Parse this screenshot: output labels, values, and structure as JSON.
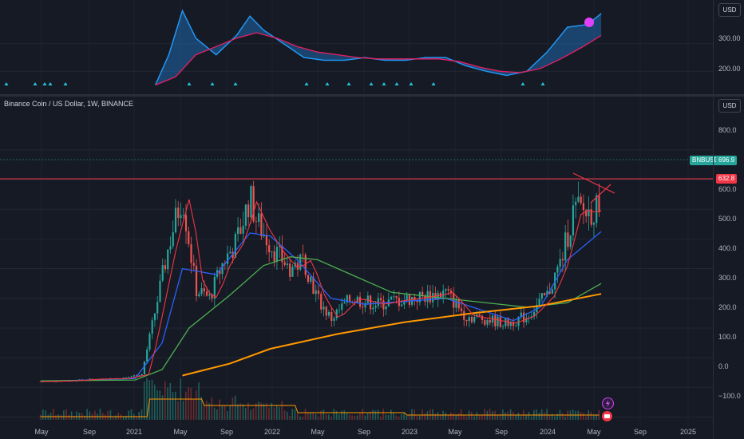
{
  "header": {
    "title": "Binance Coin / US Dollar, 1W, BINANCE",
    "currency_button": "USD",
    "currency_button_top": "USD"
  },
  "price_axis": [
    "800.0",
    "700.0",
    "600.0",
    "500.0",
    "400.0",
    "300.0",
    "200.0",
    "100.0",
    "0.0",
    "−100.0"
  ],
  "indicator_axis": [
    "300.00",
    "200.00"
  ],
  "time_axis": [
    "May",
    "Sep",
    "2021",
    "May",
    "Sep",
    "2022",
    "May",
    "Sep",
    "2023",
    "May",
    "Sep",
    "2024",
    "May",
    "Sep",
    "2025"
  ],
  "badges": {
    "symbol": "BNBUSD",
    "symbol_value": "696.9",
    "level_value": "632.8"
  },
  "colors": {
    "up": "#26a69a",
    "down": "#ef5350",
    "ma_fast": "#f23645",
    "ma_mid": "#2962ff",
    "ma_slow": "#4caf50",
    "ma_long": "#ff9800",
    "indicator_up": "#2196f3",
    "indicator_down": "#e040fb",
    "level_line": "#f23645",
    "background": "#161a25"
  },
  "icons": [
    "lightning-icon",
    "alert-icon"
  ],
  "chart_data": {
    "type": "line",
    "title": "Binance Coin / US Dollar, 1W, BINANCE",
    "ylim": [
      -120,
      880
    ],
    "horizontal_level": 632.8,
    "last_price": 696.9,
    "series": [
      {
        "values": [
          [
            2020.3,
            20
          ],
          [
            2020.5,
            22
          ],
          [
            2020.7,
            28
          ],
          [
            2020.9,
            30
          ],
          [
            2021.05,
            45
          ],
          [
            2021.15,
            260
          ],
          [
            2021.25,
            480
          ],
          [
            2021.35,
            650
          ],
          [
            2021.45,
            330
          ],
          [
            2021.55,
            300
          ],
          [
            2021.65,
            420
          ],
          [
            2021.75,
            490
          ],
          [
            2021.85,
            640
          ],
          [
            2021.9,
            560
          ],
          [
            2021.95,
            520
          ],
          [
            2022.05,
            450
          ],
          [
            2022.15,
            400
          ],
          [
            2022.25,
            430
          ],
          [
            2022.35,
            300
          ],
          [
            2022.45,
            230
          ],
          [
            2022.6,
            300
          ],
          [
            2022.8,
            280
          ],
          [
            2022.9,
            290
          ],
          [
            2023.05,
            300
          ],
          [
            2023.2,
            310
          ],
          [
            2023.3,
            320
          ],
          [
            2023.45,
            240
          ],
          [
            2023.6,
            230
          ],
          [
            2023.75,
            215
          ],
          [
            2023.9,
            240
          ],
          [
            2024.05,
            310
          ],
          [
            2024.15,
            420
          ],
          [
            2024.25,
            600
          ],
          [
            2024.35,
            590
          ],
          [
            2024.42,
            600
          ],
          [
            2024.45,
            697
          ]
        ]
      },
      {
        "values": [
          [
            2020.3,
            20
          ],
          [
            2021.0,
            30
          ],
          [
            2021.2,
            150
          ],
          [
            2021.35,
            400
          ],
          [
            2021.6,
            380
          ],
          [
            2021.85,
            520
          ],
          [
            2022.0,
            510
          ],
          [
            2022.2,
            430
          ],
          [
            2022.45,
            300
          ],
          [
            2022.7,
            280
          ],
          [
            2023.0,
            290
          ],
          [
            2023.3,
            300
          ],
          [
            2023.5,
            270
          ],
          [
            2023.8,
            225
          ],
          [
            2024.0,
            270
          ],
          [
            2024.2,
            430
          ],
          [
            2024.45,
            525
          ]
        ]
      },
      {
        "values": [
          [
            2020.3,
            22
          ],
          [
            2021.0,
            25
          ],
          [
            2021.2,
            60
          ],
          [
            2021.4,
            200
          ],
          [
            2021.7,
            310
          ],
          [
            2021.95,
            410
          ],
          [
            2022.15,
            440
          ],
          [
            2022.35,
            430
          ],
          [
            2022.6,
            380
          ],
          [
            2022.9,
            320
          ],
          [
            2023.2,
            305
          ],
          [
            2023.5,
            290
          ],
          [
            2023.9,
            270
          ],
          [
            2024.2,
            285
          ],
          [
            2024.45,
            350
          ]
        ]
      },
      {
        "values": [
          [
            2021.35,
            40
          ],
          [
            2021.7,
            80
          ],
          [
            2022.0,
            130
          ],
          [
            2022.5,
            180
          ],
          [
            2023.0,
            220
          ],
          [
            2023.5,
            250
          ],
          [
            2024.0,
            275
          ],
          [
            2024.45,
            315
          ]
        ]
      }
    ],
    "indicator": {
      "ylim": [
        140,
        430
      ],
      "values": [
        [
          2021.15,
          150
        ],
        [
          2021.25,
          260
        ],
        [
          2021.35,
          420
        ],
        [
          2021.45,
          320
        ],
        [
          2021.6,
          260
        ],
        [
          2021.75,
          330
        ],
        [
          2021.85,
          400
        ],
        [
          2021.95,
          350
        ],
        [
          2022.1,
          300
        ],
        [
          2022.25,
          250
        ],
        [
          2022.4,
          240
        ],
        [
          2022.55,
          240
        ],
        [
          2022.7,
          250
        ],
        [
          2022.85,
          240
        ],
        [
          2023.0,
          240
        ],
        [
          2023.15,
          250
        ],
        [
          2023.3,
          250
        ],
        [
          2023.45,
          220
        ],
        [
          2023.6,
          200
        ],
        [
          2023.75,
          185
        ],
        [
          2023.9,
          200
        ],
        [
          2024.05,
          270
        ],
        [
          2024.2,
          360
        ],
        [
          2024.35,
          370
        ],
        [
          2024.45,
          410
        ]
      ],
      "signal": [
        [
          2021.15,
          150
        ],
        [
          2021.3,
          180
        ],
        [
          2021.45,
          260
        ],
        [
          2021.6,
          290
        ],
        [
          2021.75,
          320
        ],
        [
          2021.9,
          340
        ],
        [
          2022.05,
          320
        ],
        [
          2022.2,
          290
        ],
        [
          2022.35,
          270
        ],
        [
          2022.5,
          260
        ],
        [
          2022.65,
          250
        ],
        [
          2022.8,
          245
        ],
        [
          2022.95,
          245
        ],
        [
          2023.1,
          245
        ],
        [
          2023.25,
          245
        ],
        [
          2023.4,
          235
        ],
        [
          2023.55,
          215
        ],
        [
          2023.7,
          200
        ],
        [
          2023.85,
          195
        ],
        [
          2024.0,
          210
        ],
        [
          2024.15,
          245
        ],
        [
          2024.3,
          285
        ],
        [
          2024.45,
          330
        ]
      ]
    }
  }
}
